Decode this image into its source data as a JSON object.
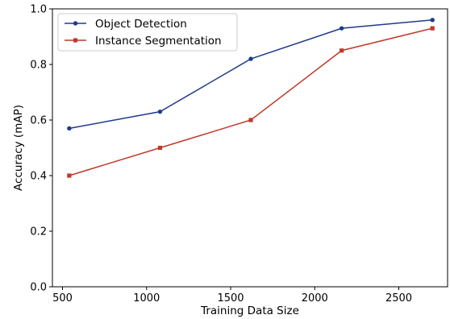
{
  "chart_data": {
    "type": "line",
    "title": "",
    "xlabel": "Training Data Size",
    "ylabel": "Accuracy (mAP)",
    "xlim": [
      440,
      2790
    ],
    "ylim": [
      0.0,
      1.0
    ],
    "xticks": [
      500,
      1000,
      1500,
      2000,
      2500
    ],
    "xtick_labels": [
      "500",
      "1000",
      "1500",
      "2000",
      "2500"
    ],
    "yticks": [
      0.0,
      0.2,
      0.4,
      0.6,
      0.8,
      1.0
    ],
    "ytick_labels": [
      "0.0",
      "0.2",
      "0.4",
      "0.6",
      "0.8",
      "1.0"
    ],
    "grid": false,
    "legend_position": "top-left",
    "x": [
      540,
      1080,
      1620,
      2160,
      2700
    ],
    "series": [
      {
        "name": "Object Detection",
        "values": [
          0.57,
          0.63,
          0.82,
          0.93,
          0.96
        ],
        "color": "#1f3a8a",
        "marker": "circle"
      },
      {
        "name": "Instance Segmentation",
        "values": [
          0.4,
          0.5,
          0.6,
          0.85,
          0.93
        ],
        "color": "#c0392b",
        "marker": "square"
      }
    ]
  }
}
